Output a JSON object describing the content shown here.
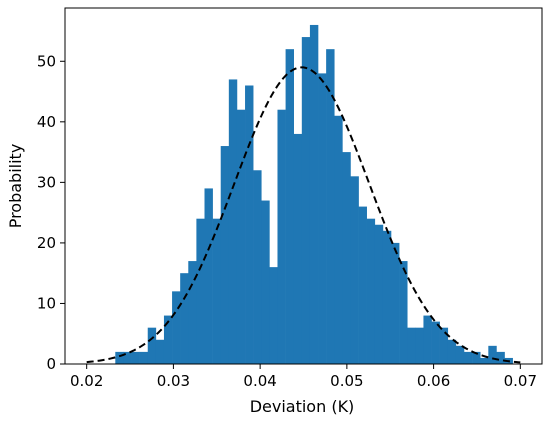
{
  "chart_data": {
    "type": "histogram",
    "title": "",
    "xlabel": "Deviation (K)",
    "ylabel": "Probability",
    "xlim": [
      0.0175,
      0.0725
    ],
    "ylim": [
      0,
      58.8
    ],
    "xticks": [
      0.02,
      0.03,
      0.04,
      0.05,
      0.06,
      0.07
    ],
    "xtick_labels": [
      "0.02",
      "0.03",
      "0.04",
      "0.05",
      "0.06",
      "0.07"
    ],
    "yticks": [
      0,
      10,
      20,
      30,
      40,
      50
    ],
    "ytick_labels": [
      "0",
      "10",
      "20",
      "30",
      "40",
      "50"
    ],
    "bar_color": "#1f77b4",
    "bins": {
      "start": 0.0233,
      "width": 0.000935,
      "counts": [
        2,
        2,
        2,
        2,
        6,
        4,
        8,
        12,
        15,
        17,
        24,
        29,
        24,
        36,
        47,
        42,
        46,
        32,
        27,
        16,
        42,
        52,
        38,
        54,
        56,
        48,
        52,
        41,
        35,
        31,
        26,
        24,
        23,
        22,
        20,
        17,
        6,
        6,
        8,
        7,
        6,
        4,
        3,
        2,
        2,
        1,
        3,
        2,
        1
      ]
    },
    "fit_curve": {
      "type": "normal",
      "mean": 0.0448,
      "peak": 49,
      "std": 0.0078,
      "x_range": [
        0.02,
        0.07
      ],
      "color": "#000000",
      "style": "dashed"
    }
  }
}
